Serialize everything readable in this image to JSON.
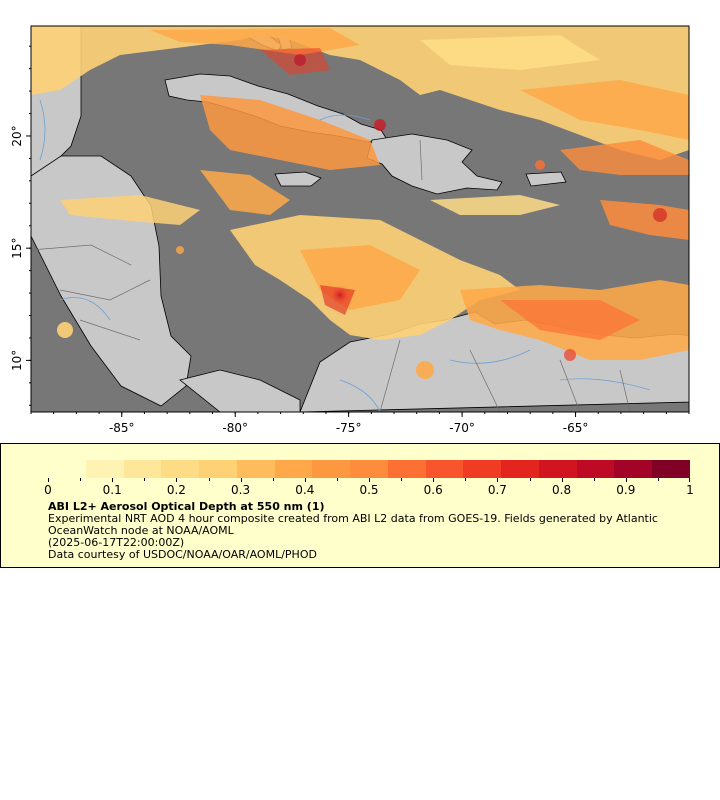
{
  "map": {
    "lon_range": [
      -89,
      -60
    ],
    "lat_range": [
      7.7,
      24.9
    ],
    "x_ticks": [
      {
        "value": -85,
        "label": "-85°"
      },
      {
        "value": -80,
        "label": "-80°"
      },
      {
        "value": -75,
        "label": "-75°"
      },
      {
        "value": -70,
        "label": "-70°"
      },
      {
        "value": -65,
        "label": "-65°"
      }
    ],
    "y_ticks": [
      {
        "value": 20,
        "label": "20°"
      },
      {
        "value": 15,
        "label": "15°"
      },
      {
        "value": 10,
        "label": "10°"
      }
    ],
    "colors": {
      "ocean": "#777777",
      "land": "#c8c8c8",
      "rivers": "#6a9fd6",
      "borders": "#6e6e6e",
      "coast": "#000000"
    }
  },
  "legend": {
    "colorbar_min": 0,
    "colorbar_max": 1,
    "colors": [
      "#ffffcc",
      "#fff3b3",
      "#ffe799",
      "#fedc86",
      "#fed175",
      "#febc5d",
      "#fea849",
      "#fd9841",
      "#fd8c3c",
      "#fc7034",
      "#f9552d",
      "#f03c23",
      "#e3251d",
      "#d1141f",
      "#be0a25",
      "#a20326",
      "#800026"
    ],
    "tick_labels": [
      "0",
      "0.1",
      "0.2",
      "0.3",
      "0.4",
      "0.5",
      "0.6",
      "0.7",
      "0.8",
      "0.9",
      "1"
    ],
    "title": "ABI L2+ Aerosol Optical Depth at 550 nm (1)",
    "line1": "Experimental NRT AOD 4 hour composite created from ABI L2 data from GOES-19. Fields generated by Atlantic OceanWatch node at NOAA/AOML",
    "line2": "(2025-06-17T22:00:00Z)",
    "line3": "Data courtesy of USDOC/NOAA/OAR/AOML/PHOD"
  }
}
